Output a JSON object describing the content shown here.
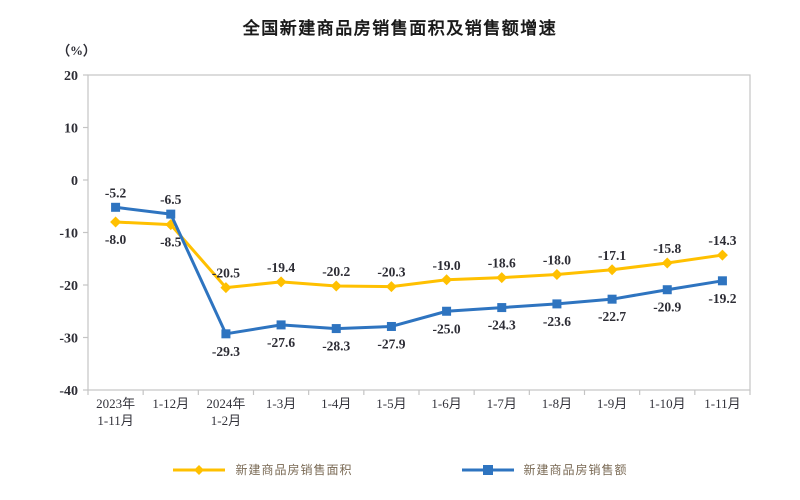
{
  "chart_data": {
    "type": "line",
    "title": "全国新建商品房销售面积及销售额增速",
    "unit_label": "（%）",
    "categories": [
      [
        "2023年",
        "1-11月"
      ],
      [
        "1-12月"
      ],
      [
        "2024年",
        "1-2月"
      ],
      [
        "1-3月"
      ],
      [
        "1-4月"
      ],
      [
        "1-5月"
      ],
      [
        "1-6月"
      ],
      [
        "1-7月"
      ],
      [
        "1-8月"
      ],
      [
        "1-9月"
      ],
      [
        "1-10月"
      ],
      [
        "1-11月"
      ]
    ],
    "yticks": [
      20,
      10,
      0,
      -10,
      -20,
      -30,
      -40
    ],
    "ylim": [
      -40,
      20
    ],
    "grid": false,
    "legend_position": "bottom",
    "series": [
      {
        "name": "新建商品房销售面积",
        "color": "#FFC000",
        "marker": "diamond",
        "values": [
          -8.0,
          -8.5,
          -20.5,
          -19.4,
          -20.2,
          -20.3,
          -19.0,
          -18.6,
          -18.0,
          -17.1,
          -15.8,
          -14.3
        ],
        "label_side": [
          "below",
          "below",
          "above",
          "above",
          "above",
          "above",
          "above",
          "above",
          "above",
          "above",
          "above",
          "above"
        ]
      },
      {
        "name": "新建商品房销售额",
        "color": "#2E74C0",
        "marker": "square",
        "values": [
          -5.2,
          -6.5,
          -29.3,
          -27.6,
          -28.3,
          -27.9,
          -25.0,
          -24.3,
          -23.6,
          -22.7,
          -20.9,
          -19.2
        ],
        "label_side": [
          "above",
          "above",
          "below",
          "below",
          "below",
          "below",
          "below",
          "below",
          "below",
          "below",
          "below",
          "below"
        ]
      }
    ],
    "axis_color": "#c4c4c4",
    "text_colors": {
      "title": "#1a1a1a",
      "axis_labels": "#2d2d35",
      "data_labels": "#2d2d35",
      "legend": "#7a6a55"
    }
  }
}
